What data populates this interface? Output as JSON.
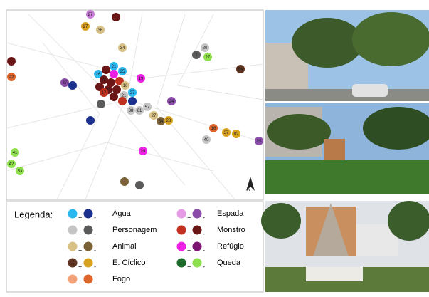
{
  "legend": {
    "title": "Legenda:",
    "plus": "+",
    "minus": "-",
    "items": [
      {
        "label": "Água",
        "positive": "#2ab8ee",
        "negative": "#1b2f8f"
      },
      {
        "label": "Personagem",
        "positive": "#c4c4c4",
        "negative": "#5a5a5a"
      },
      {
        "label": "Animal",
        "positive": "#d8c184",
        "negative": "#7a6236"
      },
      {
        "label": "E. Cíclico",
        "positive": "#5c3320",
        "negative": "#d9a21e"
      },
      {
        "label": "Fogo",
        "positive": "#f2a27a",
        "negative": "#e0652a"
      },
      {
        "label": "Espada",
        "positive": "#e79be6",
        "negative": "#8a4ca8"
      },
      {
        "label": "Monstro",
        "positive": "#c0301e",
        "negative": "#6b1616"
      },
      {
        "label": "Refúgio",
        "positive": "#ee22e6",
        "negative": "#7a1470"
      },
      {
        "label": "Queda",
        "positive": "#1c6a2a",
        "negative": "#8ee04f"
      }
    ]
  },
  "compass": "N",
  "dots": [
    {
      "label": "27",
      "color": "#c77dd6"
    },
    {
      "label": null,
      "color": "#6b1616"
    },
    {
      "label": "27",
      "color": "#d9a21e"
    },
    {
      "label": "36",
      "color": "#d8c184"
    },
    {
      "label": "34",
      "color": "#d8c184"
    },
    {
      "label": "20",
      "color": "#c4c4c4"
    },
    {
      "label": "1",
      "color": "#5a5a5a"
    },
    {
      "label": "27",
      "color": "#8ee04f"
    },
    {
      "label": null,
      "color": "#6b1616"
    },
    {
      "label": "22",
      "color": "#e0652a"
    },
    {
      "label": "37",
      "color": "#8a4ca8"
    },
    {
      "label": null,
      "color": "#1b2f8f"
    },
    {
      "label": "21",
      "color": "#2ab8ee"
    },
    {
      "label": "26",
      "color": "#2ab8ee"
    },
    {
      "label": null,
      "color": "#6b1616"
    },
    {
      "label": null,
      "color": "#ee22e6"
    },
    {
      "label": "25",
      "color": "#2ab8ee"
    },
    {
      "label": "29",
      "color": "#6b1616"
    },
    {
      "label": null,
      "color": "#6b1616"
    },
    {
      "label": null,
      "color": "#c0301e"
    },
    {
      "label": null,
      "color": "#6b1616"
    },
    {
      "label": "27",
      "color": "#6b1616"
    },
    {
      "label": null,
      "color": "#6b1616"
    },
    {
      "label": "16",
      "color": "#d8c184"
    },
    {
      "label": "27",
      "color": "#2ab8ee"
    },
    {
      "label": "21",
      "color": "#c4c4c4"
    },
    {
      "label": "17",
      "color": "#c0301e"
    },
    {
      "label": null,
      "color": "#6b1616"
    },
    {
      "label": null,
      "color": "#c0301e"
    },
    {
      "label": null,
      "color": "#1b2f8f"
    },
    {
      "label": "19",
      "color": "#ee22e6"
    },
    {
      "label": null,
      "color": "#5a5a5a"
    },
    {
      "label": "38",
      "color": "#c4c4c4"
    },
    {
      "label": "61",
      "color": "#c4c4c4"
    },
    {
      "label": "57",
      "color": "#c4c4c4"
    },
    {
      "label": "27",
      "color": "#d8c184"
    },
    {
      "label": "54",
      "color": "#7a6236"
    },
    {
      "label": "28",
      "color": "#d9a21e"
    },
    {
      "label": "24",
      "color": "#8a4ca8"
    },
    {
      "label": null,
      "color": "#1b2f8f"
    },
    {
      "label": "16",
      "color": "#e0652a"
    },
    {
      "label": "37",
      "color": "#d9a21e"
    },
    {
      "label": "02",
      "color": "#d9a21e"
    },
    {
      "label": "40",
      "color": "#c4c4c4"
    },
    {
      "label": "25",
      "color": "#8a4ca8"
    },
    {
      "label": "94",
      "color": "#5c3320"
    },
    {
      "label": "29",
      "color": "#ee22e6"
    },
    {
      "label": "41",
      "color": "#8ee04f"
    },
    {
      "label": "42",
      "color": "#8ee04f"
    },
    {
      "label": "53",
      "color": "#8ee04f"
    },
    {
      "label": null,
      "color": "#7a6236"
    },
    {
      "label": null,
      "color": "#5a5a5a"
    }
  ]
}
